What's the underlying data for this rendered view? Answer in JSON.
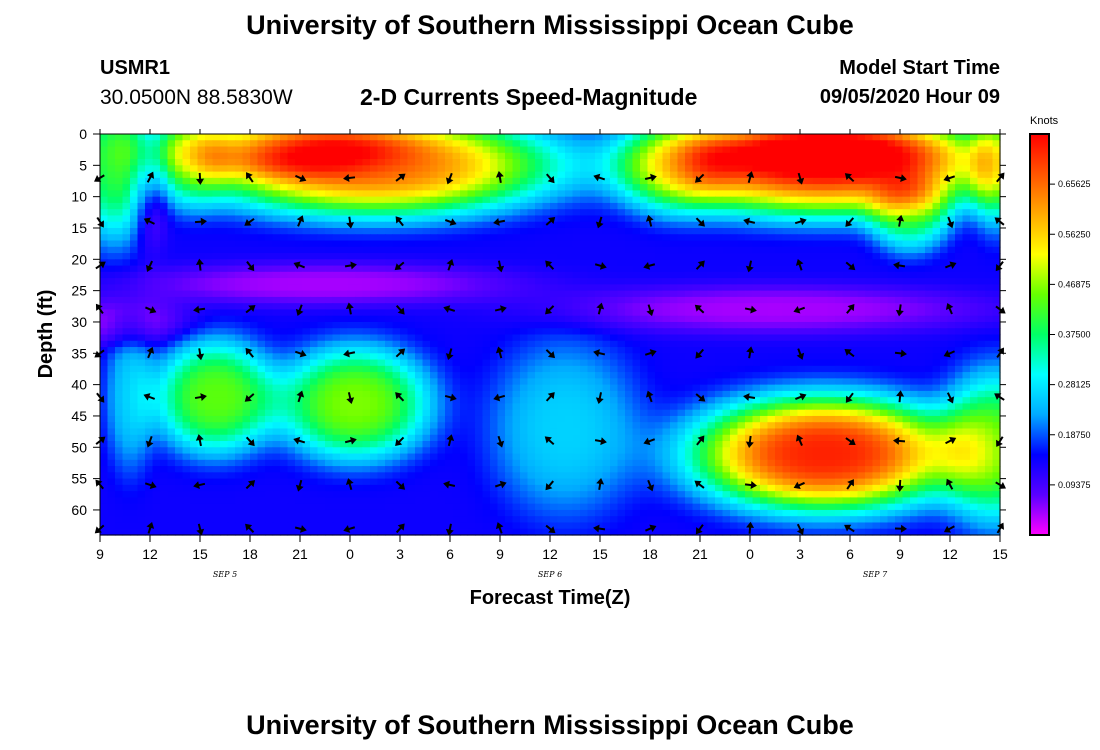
{
  "header": {
    "title": "University of Southern Mississippi Ocean Cube",
    "station_id": "USMR1",
    "station_coords": "30.0500N 88.5830W",
    "chart_title": "2-D Currents Speed-Magnitude",
    "model_label": "Model Start Time",
    "model_time": "09/05/2020 Hour 09"
  },
  "footer": {
    "title": "University of Southern Mississippi Ocean Cube"
  },
  "chart_data": {
    "type": "heatmap",
    "title": "2-D Currents Speed-Magnitude",
    "xlabel": "Forecast Time(Z)",
    "ylabel": "Depth (ft)",
    "x_ticks": [
      "9",
      "12",
      "15",
      "18",
      "21",
      "0",
      "3",
      "6",
      "9",
      "12",
      "15",
      "18",
      "21",
      "0",
      "3",
      "6",
      "9",
      "12",
      "15"
    ],
    "date_labels": [
      {
        "text": "SEP 5",
        "tick_index": 2.5
      },
      {
        "text": "SEP 6",
        "tick_index": 9
      },
      {
        "text": "SEP 7",
        "tick_index": 15.5
      }
    ],
    "y_ticks": [
      0,
      5,
      10,
      15,
      20,
      25,
      30,
      35,
      40,
      45,
      50,
      55,
      60
    ],
    "ylim": [
      0,
      64
    ],
    "xlim_ticks": [
      0,
      18
    ],
    "colorbar": {
      "unit": "Knots",
      "labels": [
        "0.65625",
        "0.56250",
        "0.46875",
        "0.37500",
        "0.28125",
        "0.18750",
        "0.09375"
      ],
      "range": [
        0,
        0.75
      ],
      "colors": [
        "#ff00ff",
        "#5a00ff",
        "#0000ff",
        "#00aaff",
        "#00ffff",
        "#00ff66",
        "#66ff00",
        "#ffff00",
        "#ffaa00",
        "#ff5500",
        "#ff0000"
      ]
    },
    "speed_features": [
      {
        "t": 5.5,
        "d": 5,
        "rt": 3.5,
        "rd": 8,
        "v": 0.5
      },
      {
        "t": 3.5,
        "d": 2,
        "rt": 2.5,
        "rd": 5,
        "v": 0.18
      },
      {
        "t": 14.5,
        "d": 5,
        "rt": 3.5,
        "rd": 8,
        "v": 0.55
      },
      {
        "t": 14.5,
        "d": 2,
        "rt": 2.5,
        "rd": 5,
        "v": 0.16
      },
      {
        "t": 14.5,
        "d": 51,
        "rt": 2.6,
        "rd": 9,
        "v": 0.58
      },
      {
        "t": 2.3,
        "d": 42,
        "rt": 1.2,
        "rd": 9,
        "v": 0.3
      },
      {
        "t": 5.1,
        "d": 43,
        "rt": 1.5,
        "rd": 9,
        "v": 0.32
      },
      {
        "t": 0.3,
        "d": 5,
        "rt": 0.8,
        "rd": 12,
        "v": 0.25
      },
      {
        "t": 17.9,
        "d": 5,
        "rt": 0.5,
        "rd": 10,
        "v": 0.2
      },
      {
        "t": 17.9,
        "d": 50,
        "rt": 1.1,
        "rd": 12,
        "v": 0.28
      },
      {
        "t": 16.2,
        "d": 13,
        "rt": 0.8,
        "rd": 6,
        "v": 0.2
      },
      {
        "t": 9.3,
        "d": 47,
        "rt": 1.5,
        "rd": 14,
        "v": 0.12
      },
      {
        "t": 1.8,
        "d": 4,
        "rt": 0.8,
        "rd": 8,
        "v": 0.16
      },
      {
        "t": 11.5,
        "d": 5,
        "rt": 1.2,
        "rd": 8,
        "v": 0.17
      },
      {
        "t": 0.6,
        "d": 42,
        "rt": 0.5,
        "rd": 12,
        "v": 0.11
      },
      {
        "t": 0.5,
        "d": 30,
        "rt": 1.3,
        "rd": 4,
        "v": -0.09
      },
      {
        "t": 4.5,
        "d": 24,
        "rt": 4,
        "rd": 3.5,
        "v": -0.1
      },
      {
        "t": 13.5,
        "d": 28,
        "rt": 4.5,
        "rd": 4,
        "v": -0.1
      },
      {
        "t": 1.0,
        "d": 8,
        "rt": 0.4,
        "rd": 10,
        "v": -0.1
      }
    ],
    "arrow_rows": [
      7,
      14,
      21,
      28,
      35,
      42,
      49,
      56,
      63
    ],
    "arrow_cols": [
      0,
      1,
      2,
      3,
      4,
      5,
      6,
      7,
      8,
      9,
      10,
      11,
      12,
      13,
      14,
      15,
      16,
      17,
      18
    ]
  }
}
